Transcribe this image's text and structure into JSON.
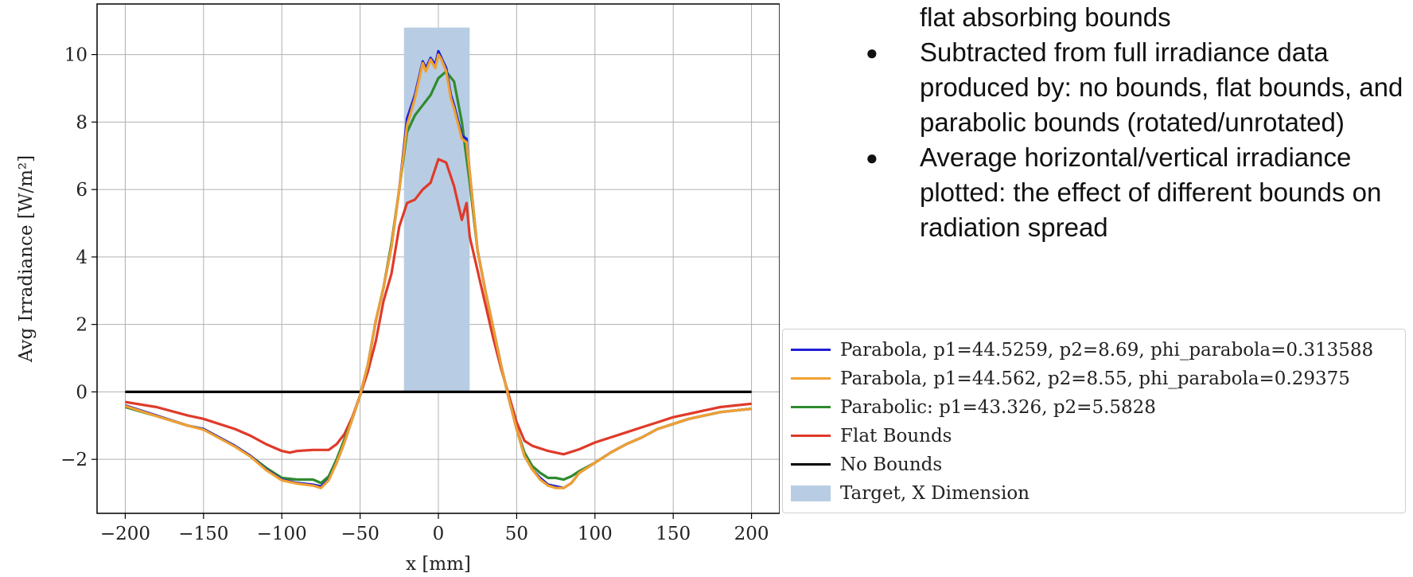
{
  "bullets": {
    "continuation": "flat absorbing bounds",
    "items": [
      "Subtracted from full irradiance data produced by: no bounds, flat bounds, and parabolic bounds (rotated/unrotated)",
      "Average horizontal/vertical irradiance plotted: the effect of different bounds on radiation spread"
    ]
  },
  "chart_data": {
    "type": "line",
    "title": "",
    "xlabel": "x [mm]",
    "ylabel": "Avg Irradiance [W/m²]",
    "xlim": [
      -218,
      218
    ],
    "ylim": [
      -3.6,
      11.5
    ],
    "xticks": [
      -200,
      -150,
      -100,
      -50,
      0,
      50,
      100,
      150,
      200
    ],
    "xtick_labels": [
      "−200",
      "−150",
      "−100",
      "−50",
      "0",
      "50",
      "100",
      "150",
      "200"
    ],
    "yticks": [
      -2,
      0,
      2,
      4,
      6,
      8,
      10
    ],
    "ytick_labels": [
      "−2",
      "0",
      "2",
      "4",
      "6",
      "8",
      "10"
    ],
    "grid": true,
    "legend_position": "right, outside plot",
    "target_region": {
      "label": "Target, X Dimension",
      "x_start": -22,
      "x_end": 20,
      "y_top": 10.8,
      "color": "#b8cde3"
    },
    "series": [
      {
        "name": "Parabola, p1=44.5259, p2=8.69, phi_parabola=0.313588",
        "color": "#1f1fd6",
        "x": [
          -200,
          -180,
          -160,
          -150,
          -140,
          -130,
          -120,
          -110,
          -100,
          -90,
          -80,
          -75,
          -70,
          -65,
          -60,
          -55,
          -50,
          -45,
          -40,
          -35,
          -30,
          -25,
          -20,
          -15,
          -10,
          -8,
          -5,
          -2,
          0,
          2,
          5,
          8,
          10,
          15,
          18,
          20,
          25,
          30,
          35,
          40,
          45,
          50,
          55,
          60,
          65,
          70,
          75,
          80,
          85,
          90,
          100,
          110,
          120,
          130,
          140,
          150,
          160,
          170,
          180,
          190,
          200
        ],
        "y": [
          -0.4,
          -0.7,
          -1.0,
          -1.1,
          -1.35,
          -1.6,
          -1.9,
          -2.3,
          -2.6,
          -2.7,
          -2.75,
          -2.8,
          -2.6,
          -2.1,
          -1.5,
          -0.8,
          -0.1,
          0.8,
          2.1,
          3.1,
          4.3,
          6.0,
          8.1,
          8.8,
          9.8,
          9.6,
          9.9,
          9.7,
          10.1,
          9.9,
          9.6,
          8.8,
          8.5,
          7.6,
          7.5,
          6.5,
          4.2,
          3.0,
          1.9,
          0.8,
          -0.2,
          -1.1,
          -1.9,
          -2.3,
          -2.55,
          -2.75,
          -2.8,
          -2.85,
          -2.7,
          -2.4,
          -2.1,
          -1.8,
          -1.55,
          -1.35,
          -1.1,
          -0.95,
          -0.8,
          -0.7,
          -0.6,
          -0.55,
          -0.5
        ]
      },
      {
        "name": "Parabola, p1=44.562, p2=8.55, phi_parabola=0.29375",
        "color": "#f0a030",
        "x": [
          -200,
          -180,
          -160,
          -150,
          -140,
          -130,
          -120,
          -110,
          -100,
          -90,
          -80,
          -75,
          -70,
          -65,
          -60,
          -55,
          -50,
          -45,
          -40,
          -35,
          -30,
          -25,
          -20,
          -15,
          -10,
          -8,
          -5,
          -2,
          0,
          2,
          5,
          8,
          10,
          15,
          18,
          20,
          25,
          30,
          35,
          40,
          45,
          50,
          55,
          60,
          65,
          70,
          75,
          80,
          85,
          90,
          100,
          110,
          120,
          130,
          140,
          150,
          160,
          170,
          180,
          190,
          200
        ],
        "y": [
          -0.42,
          -0.72,
          -1.0,
          -1.12,
          -1.37,
          -1.62,
          -1.92,
          -2.32,
          -2.62,
          -2.72,
          -2.78,
          -2.85,
          -2.62,
          -2.1,
          -1.5,
          -0.8,
          -0.1,
          0.8,
          2.1,
          3.1,
          4.3,
          6.0,
          7.9,
          8.7,
          9.75,
          9.5,
          9.85,
          9.6,
          10.0,
          9.85,
          9.5,
          8.7,
          8.4,
          7.5,
          7.4,
          6.5,
          4.2,
          3.0,
          1.9,
          0.8,
          -0.2,
          -1.1,
          -1.9,
          -2.3,
          -2.6,
          -2.78,
          -2.85,
          -2.85,
          -2.7,
          -2.4,
          -2.1,
          -1.8,
          -1.55,
          -1.35,
          -1.1,
          -0.95,
          -0.8,
          -0.7,
          -0.6,
          -0.55,
          -0.5
        ]
      },
      {
        "name": "Parabolic: p1=43.326, p2=5.5828",
        "color": "#2e8b2e",
        "x": [
          -200,
          -180,
          -160,
          -150,
          -140,
          -130,
          -120,
          -110,
          -100,
          -90,
          -80,
          -75,
          -70,
          -65,
          -60,
          -55,
          -50,
          -45,
          -40,
          -35,
          -30,
          -25,
          -20,
          -15,
          -10,
          -5,
          0,
          5,
          10,
          15,
          20,
          25,
          30,
          35,
          40,
          45,
          50,
          55,
          60,
          65,
          70,
          75,
          80,
          85,
          90,
          100,
          110,
          120,
          130,
          140,
          150,
          160,
          170,
          180,
          190,
          200
        ],
        "y": [
          -0.45,
          -0.72,
          -1.0,
          -1.1,
          -1.35,
          -1.6,
          -1.9,
          -2.25,
          -2.55,
          -2.6,
          -2.6,
          -2.7,
          -2.5,
          -2.0,
          -1.4,
          -0.8,
          -0.1,
          0.8,
          2.1,
          3.1,
          4.4,
          6.0,
          7.7,
          8.2,
          8.5,
          8.8,
          9.3,
          9.5,
          9.2,
          8.0,
          6.2,
          4.2,
          3.0,
          1.9,
          0.8,
          -0.2,
          -1.1,
          -1.8,
          -2.2,
          -2.4,
          -2.55,
          -2.55,
          -2.6,
          -2.5,
          -2.35,
          -2.1,
          -1.8,
          -1.55,
          -1.35,
          -1.1,
          -0.95,
          -0.8,
          -0.7,
          -0.6,
          -0.55,
          -0.5
        ]
      },
      {
        "name": "Flat Bounds",
        "color": "#e03a2a",
        "x": [
          -200,
          -180,
          -160,
          -150,
          -140,
          -130,
          -120,
          -110,
          -100,
          -95,
          -90,
          -80,
          -70,
          -65,
          -60,
          -55,
          -50,
          -45,
          -40,
          -35,
          -30,
          -25,
          -20,
          -15,
          -10,
          -5,
          0,
          5,
          10,
          15,
          18,
          20,
          25,
          30,
          35,
          40,
          45,
          50,
          55,
          60,
          70,
          80,
          90,
          100,
          110,
          120,
          130,
          140,
          150,
          160,
          170,
          180,
          190,
          200
        ],
        "y": [
          -0.3,
          -0.45,
          -0.7,
          -0.8,
          -0.95,
          -1.1,
          -1.3,
          -1.55,
          -1.75,
          -1.8,
          -1.75,
          -1.72,
          -1.72,
          -1.55,
          -1.25,
          -0.75,
          -0.1,
          0.6,
          1.5,
          2.7,
          3.5,
          4.9,
          5.6,
          5.7,
          6.0,
          6.2,
          6.9,
          6.8,
          6.1,
          5.1,
          5.6,
          4.6,
          3.6,
          2.6,
          1.6,
          0.7,
          -0.1,
          -0.9,
          -1.45,
          -1.6,
          -1.75,
          -1.85,
          -1.7,
          -1.5,
          -1.35,
          -1.2,
          -1.05,
          -0.9,
          -0.75,
          -0.65,
          -0.55,
          -0.45,
          -0.4,
          -0.35
        ]
      },
      {
        "name": "No Bounds",
        "color": "#000000",
        "x": [
          -200,
          200
        ],
        "y": [
          0,
          0
        ]
      }
    ]
  }
}
